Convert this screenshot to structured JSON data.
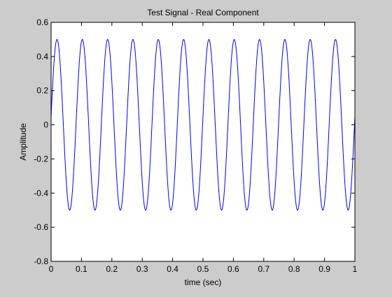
{
  "chart_data": {
    "type": "line",
    "title": "Test Signal - Real Component",
    "xlabel": "time (sec)",
    "ylabel": "Amplitude",
    "xlim": [
      0,
      1
    ],
    "ylim": [
      -0.8,
      0.6
    ],
    "xticks": [
      0,
      0.1,
      0.2,
      0.3,
      0.4,
      0.5,
      0.6,
      0.7,
      0.8,
      0.9,
      1
    ],
    "xtick_labels": [
      "0",
      "0.1",
      "0.2",
      "0.3",
      "0.4",
      "0.5",
      "0.6",
      "0.7",
      "0.8",
      "0.9",
      "1"
    ],
    "yticks": [
      -0.8,
      -0.6,
      -0.4,
      -0.2,
      0,
      0.2,
      0.4,
      0.6
    ],
    "ytick_labels": [
      "-0.8",
      "-0.6",
      "-0.4",
      "-0.2",
      "0",
      "0.2",
      "0.4",
      "0.6"
    ],
    "grid": false,
    "series": [
      {
        "color": "#0000ff",
        "signal": {
          "form": "sinusoid",
          "amplitude": 0.5,
          "frequency_hz": 12,
          "phase_rad": 0.1,
          "t_start": 0,
          "t_end": 1,
          "samples": 1000
        }
      }
    ],
    "background_color": "#ffffff",
    "figure_color": "#cccccc"
  }
}
